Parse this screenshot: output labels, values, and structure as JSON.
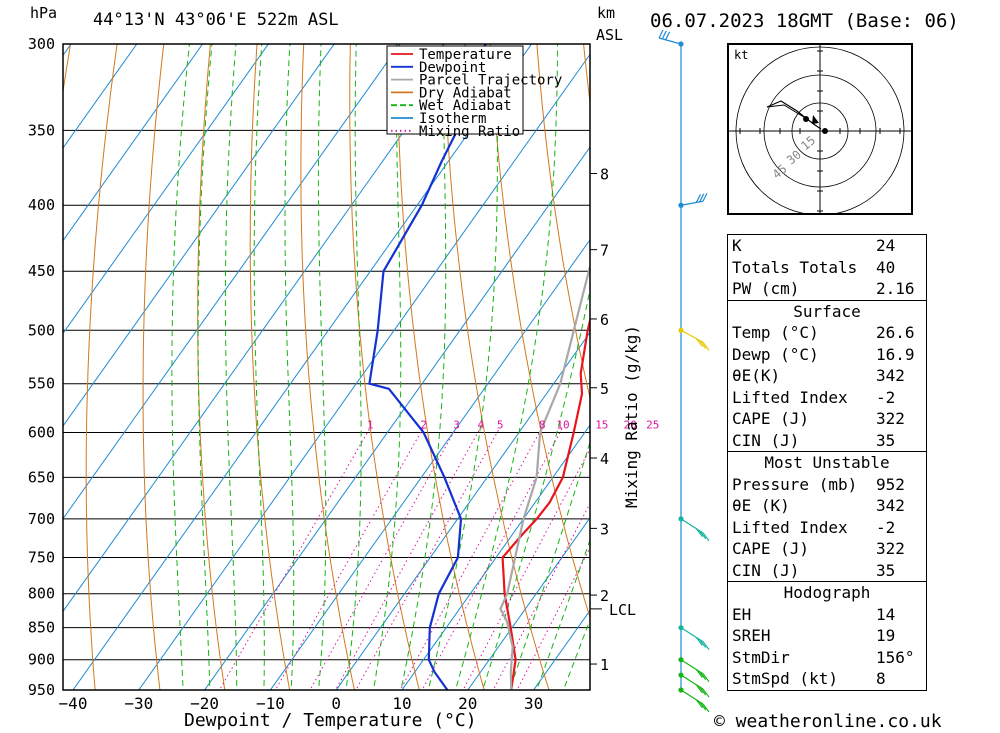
{
  "header": {
    "pressure_unit": "hPa",
    "location": "44°13'N  43°06'E  522m  ASL",
    "km_unit": "km",
    "asl_unit": "ASL",
    "datetime": "06.07.2023  18GMT  (Base: 06)"
  },
  "footer": {
    "copyright": "© weatheronline.co.uk"
  },
  "chart_data": {
    "type": "line",
    "title": "44°13'N  43°06'E  522m  ASL",
    "xlabel": "Dewpoint / Temperature (°C)",
    "ylabel": "hPa",
    "secondary_ylabel": "Mixing Ratio (g/kg)",
    "km_axis_label": "km ASL",
    "xlim": [
      -40,
      38
    ],
    "ylim": [
      950,
      300
    ],
    "x_ticks": [
      -40,
      -30,
      -20,
      -10,
      0,
      10,
      20,
      30
    ],
    "y_ticks": [
      300,
      350,
      400,
      450,
      500,
      550,
      600,
      650,
      700,
      750,
      800,
      850,
      900,
      950
    ],
    "km_ticks": [
      {
        "km": "1",
        "p": 907
      },
      {
        "km": "2",
        "p": 802
      },
      {
        "km": "3",
        "p": 712
      },
      {
        "km": "4",
        "p": 628
      },
      {
        "km": "5",
        "p": 554
      },
      {
        "km": "6",
        "p": 490
      },
      {
        "km": "7",
        "p": 433
      },
      {
        "km": "8",
        "p": 378
      }
    ],
    "lcl": {
      "label": "LCL",
      "p": 822
    },
    "mixing_ratio_labels": [
      "1",
      "2",
      "3",
      "4",
      "5",
      "8",
      "10",
      "15",
      "20",
      "25"
    ],
    "legend": [
      {
        "name": "Temperature",
        "color": "#e8141e"
      },
      {
        "name": "Dewpoint",
        "color": "#1432d2"
      },
      {
        "name": "Parcel Trajectory",
        "color": "#a8a8a8"
      },
      {
        "name": "Dry Adiabat",
        "color": "#d2781e"
      },
      {
        "name": "Wet Adiabat",
        "color": "#14b414"
      },
      {
        "name": "Isotherm",
        "color": "#1e8cd2"
      },
      {
        "name": "Mixing Ratio",
        "color": "#dc14a0"
      }
    ],
    "series": [
      {
        "name": "Temperature",
        "color": "#e8141e",
        "points": [
          [
            26.6,
            950
          ],
          [
            24,
            900
          ],
          [
            19.8,
            850
          ],
          [
            15.2,
            800
          ],
          [
            11,
            750
          ],
          [
            11.5,
            720
          ],
          [
            12,
            700
          ],
          [
            12.2,
            680
          ],
          [
            11.5,
            650
          ],
          [
            8.3,
            600
          ],
          [
            5.4,
            560
          ],
          [
            3,
            540
          ],
          [
            -0.6,
            500
          ],
          [
            -4.8,
            450
          ],
          [
            -8.5,
            400
          ],
          [
            -13.8,
            360
          ],
          [
            -15.5,
            340
          ],
          [
            -17,
            320
          ],
          [
            -20,
            300
          ]
        ]
      },
      {
        "name": "Dewpoint",
        "color": "#1432d2",
        "points": [
          [
            16.9,
            950
          ],
          [
            13,
            920
          ],
          [
            10.8,
            900
          ],
          [
            7.5,
            850
          ],
          [
            5.2,
            800
          ],
          [
            4.2,
            750
          ],
          [
            0.5,
            700
          ],
          [
            -6.5,
            650
          ],
          [
            -14.5,
            600
          ],
          [
            -24.5,
            555
          ],
          [
            -28,
            550
          ],
          [
            -32.5,
            500
          ],
          [
            -38,
            450
          ],
          [
            -38.5,
            430
          ],
          [
            -39.3,
            400
          ],
          [
            -41,
            370
          ],
          [
            -42,
            350
          ],
          [
            -45,
            330
          ],
          [
            -47,
            300
          ]
        ]
      },
      {
        "name": "Parcel Trajectory",
        "color": "#a8a8a8",
        "points": [
          [
            26.6,
            950
          ],
          [
            24.6,
            920
          ],
          [
            22.2,
            880
          ],
          [
            18.5,
            840
          ],
          [
            16.2,
            822
          ],
          [
            15.6,
            800
          ],
          [
            12.9,
            750
          ],
          [
            10,
            700
          ],
          [
            7.5,
            650
          ],
          [
            3.2,
            600
          ],
          [
            1,
            550
          ],
          [
            -2.7,
            500
          ],
          [
            -6.8,
            450
          ],
          [
            -11,
            400
          ],
          [
            -14.6,
            370
          ],
          [
            -16.5,
            350
          ],
          [
            -20,
            320
          ],
          [
            -22,
            300
          ]
        ]
      }
    ],
    "hodograph": {
      "unit": "kt",
      "ring_labels": [
        "15",
        "30",
        "45"
      ],
      "storm_dir": "156°",
      "storm_speed_kt": 8
    },
    "wind_barbs": [
      {
        "p": 950
      },
      {
        "p": 925
      },
      {
        "p": 900
      },
      {
        "p": 850
      },
      {
        "p": 700
      },
      {
        "p": 500
      },
      {
        "p": 400
      },
      {
        "p": 300
      }
    ]
  },
  "indices": {
    "general": [
      {
        "label": "K",
        "value": "24"
      },
      {
        "label": "Totals Totals",
        "value": "40"
      },
      {
        "label": "PW (cm)",
        "value": "2.16"
      }
    ],
    "surface": {
      "title": "Surface",
      "rows": [
        {
          "label": "Temp (°C)",
          "value": "26.6"
        },
        {
          "label": "Dewp (°C)",
          "value": "16.9"
        },
        {
          "label": "θE(K)",
          "value": "342"
        },
        {
          "label": "Lifted Index",
          "value": "-2"
        },
        {
          "label": "CAPE (J)",
          "value": "322"
        },
        {
          "label": "CIN (J)",
          "value": "35"
        }
      ]
    },
    "most_unstable": {
      "title": "Most Unstable",
      "rows": [
        {
          "label": "Pressure (mb)",
          "value": "952"
        },
        {
          "label": "θE (K)",
          "value": "342"
        },
        {
          "label": "Lifted Index",
          "value": "-2"
        },
        {
          "label": "CAPE (J)",
          "value": "322"
        },
        {
          "label": "CIN (J)",
          "value": "35"
        }
      ]
    },
    "hodograph": {
      "title": "Hodograph",
      "rows": [
        {
          "label": "EH",
          "value": "14"
        },
        {
          "label": "SREH",
          "value": "19"
        },
        {
          "label": "StmDir",
          "value": "156°"
        },
        {
          "label": "StmSpd (kt)",
          "value": "8"
        }
      ]
    }
  }
}
